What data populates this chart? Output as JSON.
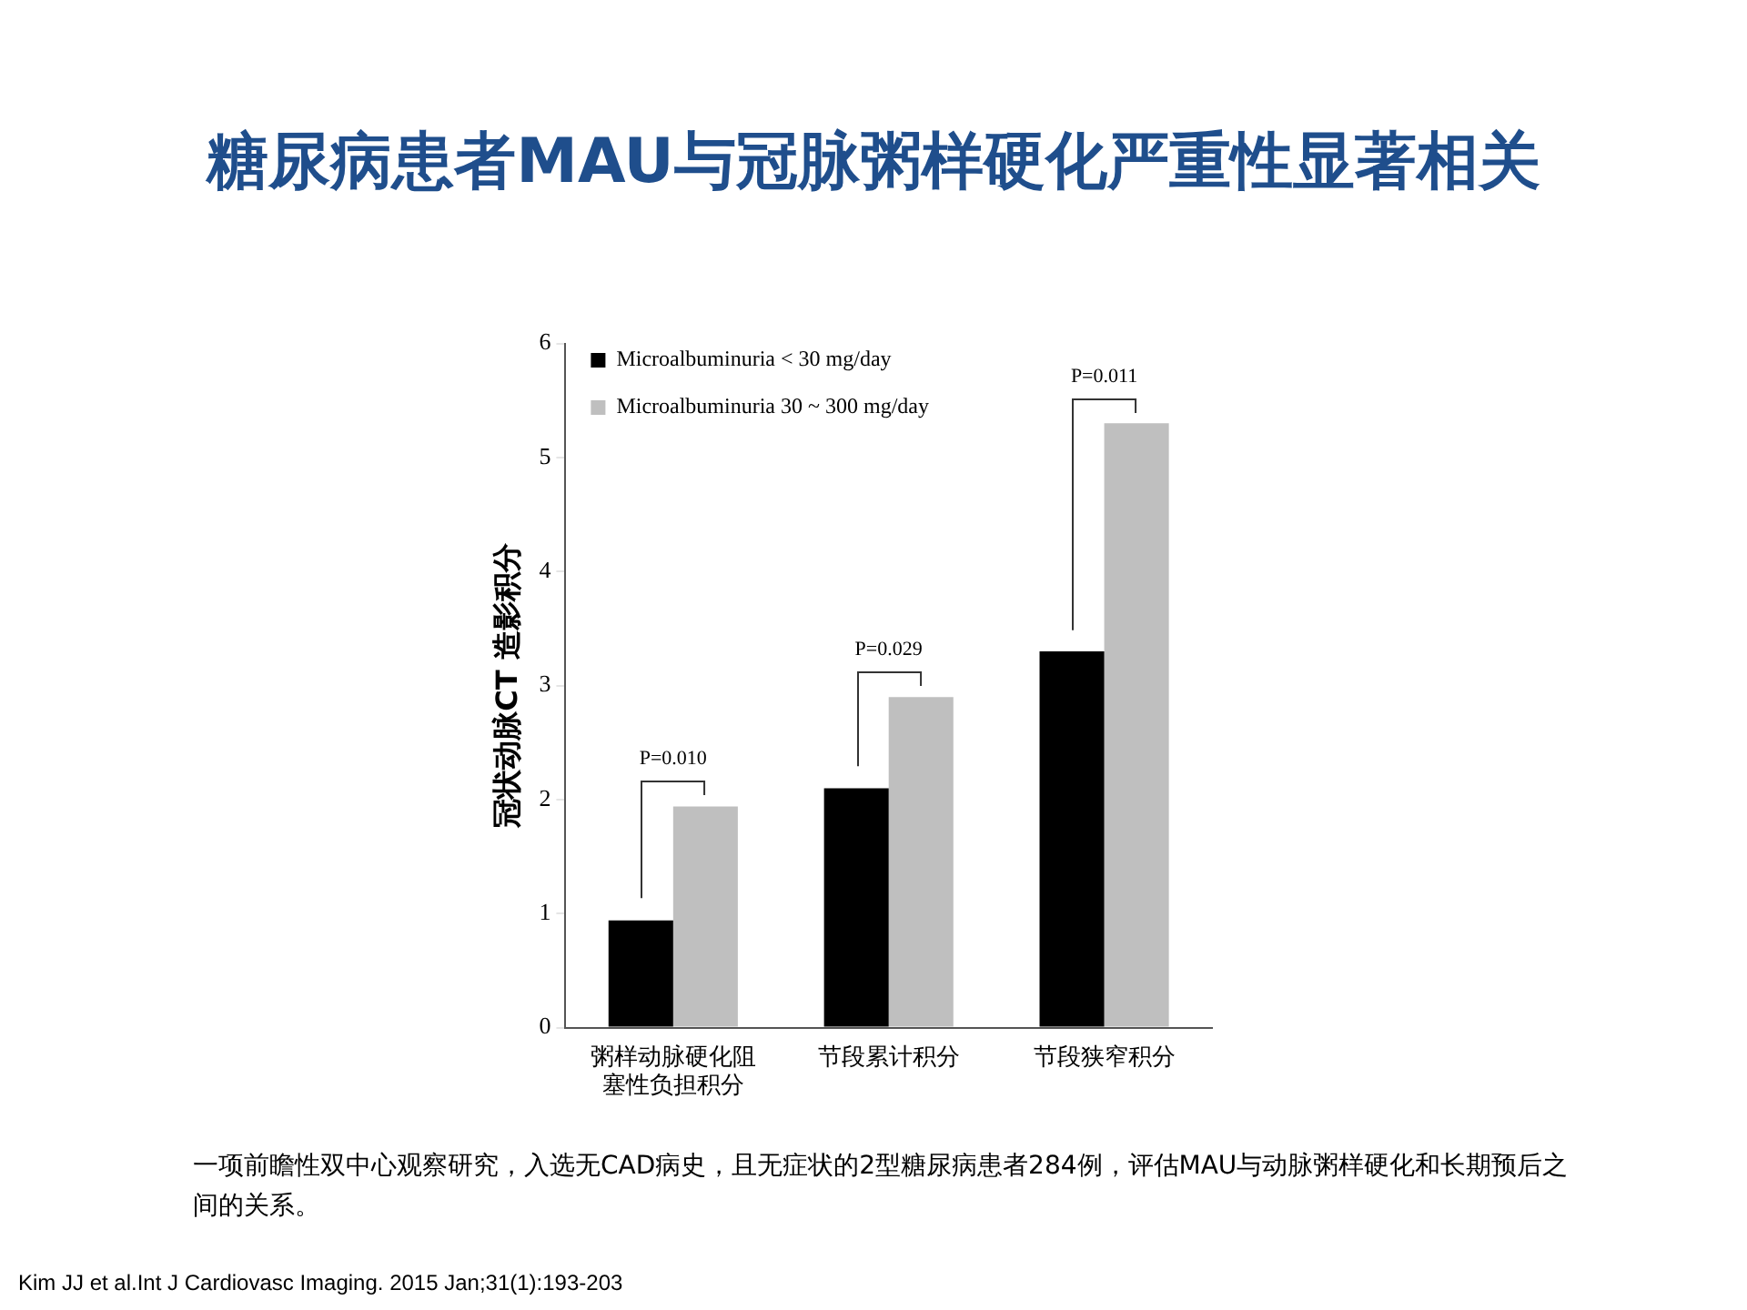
{
  "chart_data": {
    "type": "bar",
    "title": "糖尿病患者MAU与冠脉粥样硬化严重性显著相关",
    "ylabel": "冠状动脉CT 造影积分",
    "categories": [
      "粥样动脉硬化阻塞性负担积分",
      "节段累计积分",
      "节段狭窄积分"
    ],
    "series": [
      {
        "name": "Microalbuminuria < 30 mg/day",
        "color": "#000000",
        "values": [
          0.94,
          2.1,
          3.3
        ]
      },
      {
        "name": "Microalbuminuria 30 ~ 300 mg/day",
        "color": "#bfbfbf",
        "values": [
          1.94,
          2.9,
          5.3
        ]
      }
    ],
    "ylim": [
      0,
      6
    ],
    "yticks": [
      0,
      1,
      2,
      3,
      4,
      5,
      6
    ],
    "grid": false,
    "legend": "top left",
    "annotations": [
      "P=0.010",
      "P=0.029",
      "P=0.011",
      "一项前瞻性双中心观察研究，入选无CAD病史，且无症状的2型糖尿病患者284例，评估MAU与动脉粥样硬化和长期预后之间的关系。",
      "Kim JJ et al.Int J Cardiovasc Imaging. 2015 Jan;31(1):193-203"
    ]
  }
}
